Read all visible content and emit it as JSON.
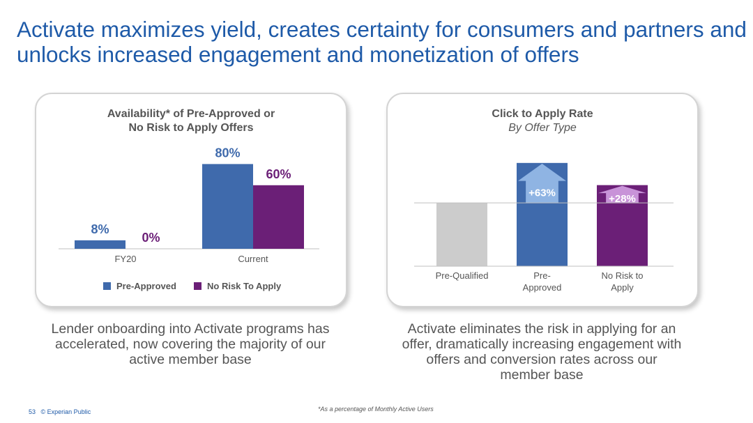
{
  "slide": {
    "title": "Activate maximizes yield, creates certainty for consumers and partners and unlocks increased engagement and monetization of offers",
    "left_caption": "Lender onboarding into Activate programs has accelerated, now covering the majority of our active member base",
    "right_caption": "Activate eliminates the risk in applying for an offer, dramatically increasing engagement with offers and conversion rates across our member base",
    "footnote": "*As a percentage of Monthly Active Users",
    "page_number": "53",
    "footer_label": "© Experian Public"
  },
  "colors": {
    "pre_approved": "#3f6aac",
    "no_risk": "#6b1f77",
    "pre_qualified": "#cccccc",
    "arrow_light_blue": "#8fb4e3",
    "arrow_light_purple": "#c893d8",
    "title_blue": "#1e5aa8"
  },
  "chart_data": [
    {
      "type": "bar",
      "title_line1": "Availability* of Pre-Approved or",
      "title_line2": "No Risk to Apply Offers",
      "categories": [
        "FY20",
        "Current"
      ],
      "series": [
        {
          "name": "Pre-Approved",
          "values": [
            8,
            80
          ],
          "labels": [
            "8%",
            "80%"
          ]
        },
        {
          "name": "No Risk To Apply",
          "values": [
            0,
            60
          ],
          "labels": [
            "0%",
            "60%"
          ]
        }
      ],
      "ylim": [
        0,
        100
      ],
      "legend": "bottom"
    },
    {
      "type": "bar",
      "title": "Click to Apply Rate",
      "subtitle": "By Offer Type",
      "categories": [
        "Pre-Qualified",
        "Pre-\nApproved",
        "No Risk to\nApply"
      ],
      "category_lines": [
        [
          "Pre-Qualified"
        ],
        [
          "Pre-",
          "Approved"
        ],
        [
          "No Risk to",
          "Apply"
        ]
      ],
      "values": [
        100,
        163,
        128
      ],
      "uplift_labels": [
        "",
        "+63%",
        "+28%"
      ],
      "baseline": 100,
      "ylim": [
        0,
        165
      ]
    }
  ]
}
